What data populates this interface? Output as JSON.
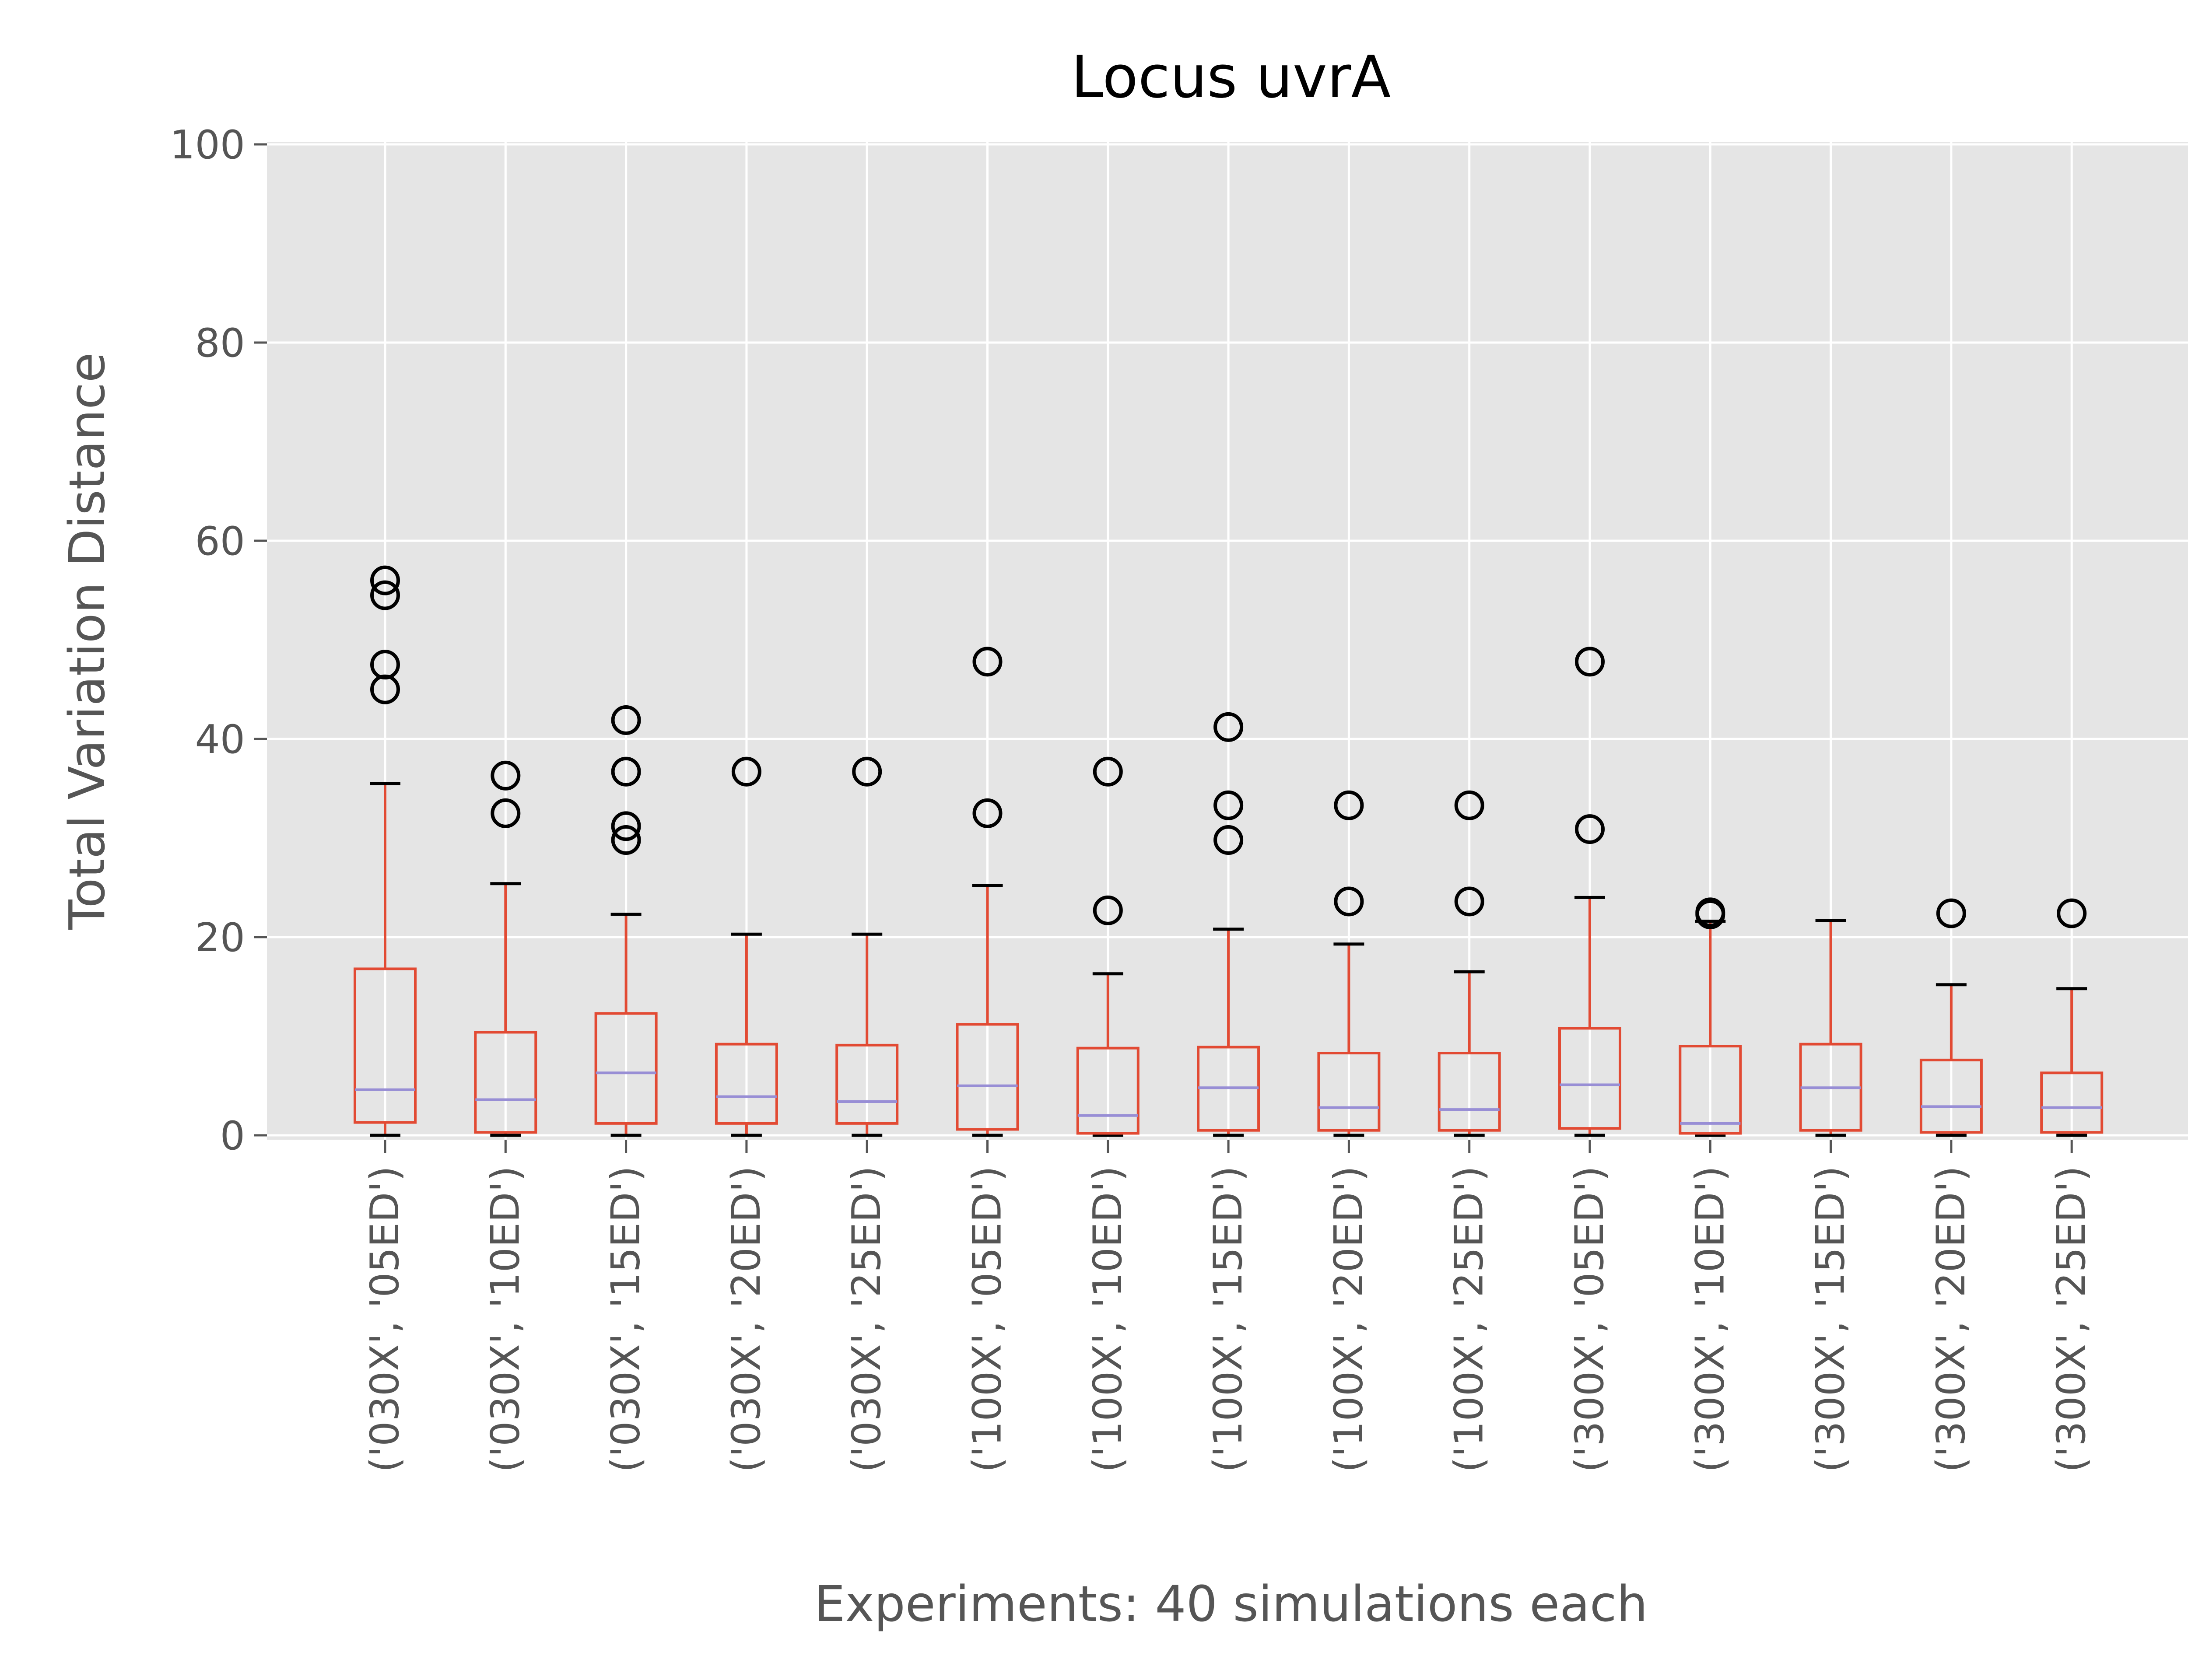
{
  "chart_data": {
    "type": "box",
    "title": "Locus uvrA",
    "xlabel": "Experiments: 40 simulations each",
    "ylabel": "Total Variation Distance",
    "ylim": [
      0,
      100
    ],
    "yticks": [
      0,
      20,
      40,
      60,
      80,
      100
    ],
    "grid": true,
    "colors": {
      "plot_background": "#e5e5e5",
      "grid": "#ffffff",
      "box": "#e24a33",
      "median": "#988ed5",
      "cap": "#000000",
      "flier": "#000000",
      "label_text": "#555555",
      "title_text": "#000000"
    },
    "categories": [
      "('030X', '05ED')",
      "('030X', '10ED')",
      "('030X', '15ED')",
      "('030X', '20ED')",
      "('030X', '25ED')",
      "('100X', '05ED')",
      "('100X', '10ED')",
      "('100X', '15ED')",
      "('100X', '20ED')",
      "('100X', '25ED')",
      "('300X', '05ED')",
      "('300X', '10ED')",
      "('300X', '15ED')",
      "('300X', '20ED')",
      "('300X', '25ED')"
    ],
    "boxes": [
      {
        "whislo": 0,
        "q1": 1.3,
        "med": 4.6,
        "q3": 16.8,
        "whishi": 35.5,
        "fliers": [
          45.0,
          47.5,
          54.5,
          56.0
        ]
      },
      {
        "whislo": 0,
        "q1": 0.3,
        "med": 3.6,
        "q3": 10.4,
        "whishi": 25.4,
        "fliers": [
          32.5,
          36.3
        ]
      },
      {
        "whislo": 0,
        "q1": 1.2,
        "med": 6.3,
        "q3": 12.3,
        "whishi": 22.3,
        "fliers": [
          29.8,
          31.2,
          36.7,
          41.9
        ]
      },
      {
        "whislo": 0,
        "q1": 1.2,
        "med": 3.9,
        "q3": 9.2,
        "whishi": 20.3,
        "fliers": [
          36.7
        ]
      },
      {
        "whislo": 0,
        "q1": 1.2,
        "med": 3.4,
        "q3": 9.1,
        "whishi": 20.3,
        "fliers": [
          36.7
        ]
      },
      {
        "whislo": 0,
        "q1": 0.6,
        "med": 5.0,
        "q3": 11.2,
        "whishi": 25.2,
        "fliers": [
          32.5,
          47.8
        ]
      },
      {
        "whislo": 0,
        "q1": 0.2,
        "med": 2.0,
        "q3": 8.8,
        "whishi": 16.3,
        "fliers": [
          22.7,
          36.7
        ]
      },
      {
        "whislo": 0,
        "q1": 0.5,
        "med": 4.8,
        "q3": 8.9,
        "whishi": 20.8,
        "fliers": [
          29.8,
          33.3,
          41.2
        ]
      },
      {
        "whislo": 0,
        "q1": 0.5,
        "med": 2.8,
        "q3": 8.3,
        "whishi": 19.3,
        "fliers": [
          23.6,
          33.3
        ]
      },
      {
        "whislo": 0,
        "q1": 0.5,
        "med": 2.6,
        "q3": 8.3,
        "whishi": 16.5,
        "fliers": [
          23.6,
          33.3
        ]
      },
      {
        "whislo": 0,
        "q1": 0.7,
        "med": 5.1,
        "q3": 10.8,
        "whishi": 24.0,
        "fliers": [
          30.9,
          47.8
        ]
      },
      {
        "whislo": 0,
        "q1": 0.2,
        "med": 1.2,
        "q3": 9.0,
        "whishi": 21.6,
        "fliers": [
          22.3,
          22.5
        ]
      },
      {
        "whislo": 0,
        "q1": 0.5,
        "med": 4.8,
        "q3": 9.2,
        "whishi": 21.7,
        "fliers": []
      },
      {
        "whislo": 0,
        "q1": 0.3,
        "med": 2.9,
        "q3": 7.6,
        "whishi": 15.2,
        "fliers": [
          22.4
        ]
      },
      {
        "whislo": 0,
        "q1": 0.3,
        "med": 2.8,
        "q3": 6.3,
        "whishi": 14.8,
        "fliers": [
          22.4
        ]
      }
    ]
  }
}
